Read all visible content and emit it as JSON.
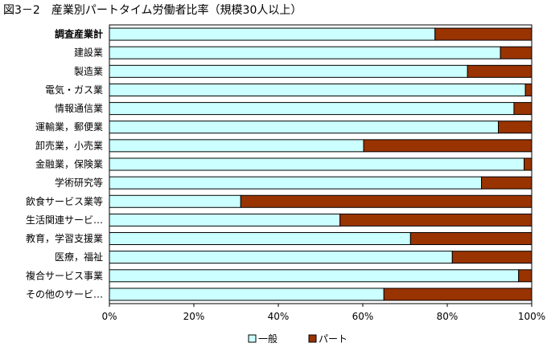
{
  "figure_title": "図3－2　産業別パートタイム労働者比率（規模30人以上）",
  "chart_data": {
    "type": "bar",
    "orientation": "horizontal",
    "stacked": "percent",
    "categories": [
      "調査産業計",
      "建設業",
      "製造業",
      "電気・ガス業",
      "情報通信業",
      "運輸業，郵便業",
      "卸売業，小売業",
      "金融業，保険業",
      "学術研究等",
      "飲食サービス業等",
      "生活関連サービ…",
      "教育，学習支援業",
      "医療，福祉",
      "複合サービス事業",
      "その他のサービ…"
    ],
    "series": [
      {
        "name": "一般",
        "color": "#ccffff",
        "values": [
          77.1,
          92.6,
          84.8,
          98.5,
          95.8,
          92.1,
          60.2,
          98.2,
          88.1,
          31.1,
          54.6,
          71.3,
          81.2,
          96.9,
          65.0
        ]
      },
      {
        "name": "パート",
        "color": "#993300",
        "values": [
          22.9,
          7.4,
          15.2,
          1.5,
          4.2,
          7.9,
          39.8,
          1.8,
          11.9,
          68.9,
          45.4,
          28.7,
          18.8,
          3.1,
          35.0
        ]
      }
    ],
    "xticks": [
      "0%",
      "20%",
      "40%",
      "60%",
      "80%",
      "100%"
    ],
    "xlim": [
      0,
      100
    ],
    "bold_categories": [
      "調査産業計"
    ],
    "grid": false,
    "legend_position": "bottom"
  }
}
